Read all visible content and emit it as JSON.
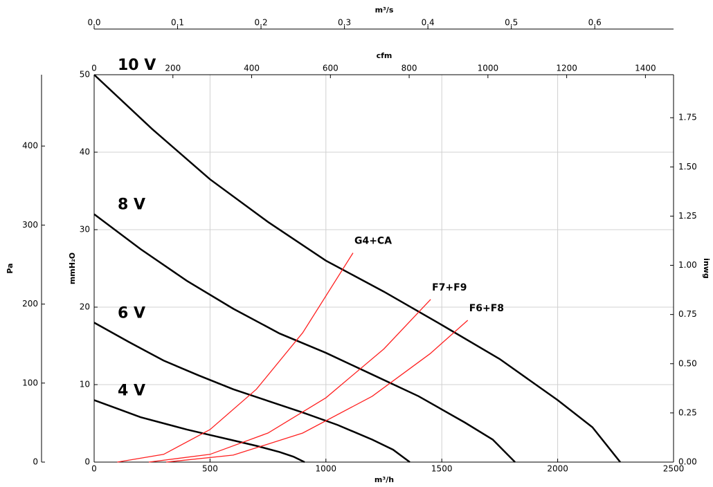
{
  "chart_data": {
    "type": "line",
    "x_label": "m³/h",
    "xlim": [
      0,
      2500
    ],
    "xticks": [
      0,
      500,
      1000,
      1500,
      2000,
      2500
    ],
    "x2_label": "cfm",
    "x2lim": [
      0,
      1471.4
    ],
    "x2ticks": [
      0,
      200,
      400,
      600,
      800,
      1000,
      1200,
      1400
    ],
    "x3_label": "m³/s",
    "x3lim": [
      0,
      0.6944
    ],
    "x3ticks": [
      {
        "value": 0,
        "label": "0.0"
      },
      0.1,
      0.2,
      0.3,
      0.4,
      0.5,
      0.6
    ],
    "y_label": "mmH₂O",
    "ylim": [
      0,
      50
    ],
    "yticks": [
      0,
      10,
      20,
      30,
      40,
      50
    ],
    "y2_label": "inwg",
    "y2lim": [
      0,
      1.9685
    ],
    "y2ticks": [
      {
        "value": 0,
        "label": "0.00"
      },
      0.25,
      {
        "value": 0.5,
        "label": "0.50"
      },
      0.75,
      {
        "value": 1,
        "label": "1.00"
      },
      1.25,
      {
        "value": 1.5,
        "label": "1.50"
      },
      1.75
    ],
    "y3_label": "Pa",
    "y3lim": [
      0,
      490.3
    ],
    "y3ticks": [
      0,
      100,
      200,
      300,
      400
    ],
    "grid": true,
    "series": [
      {
        "name": "10 V",
        "color": "#000000",
        "x": [
          0,
          250,
          500,
          750,
          1000,
          1250,
          1500,
          1750,
          2000,
          2150,
          2270
        ],
        "values": [
          50,
          43,
          36.5,
          31,
          26,
          22,
          17.7,
          13.3,
          8,
          4.5,
          0
        ]
      },
      {
        "name": "8 V",
        "color": "#000000",
        "x": [
          0,
          200,
          400,
          600,
          800,
          1000,
          1200,
          1400,
          1600,
          1720,
          1816
        ],
        "values": [
          32,
          27.5,
          23.4,
          19.8,
          16.6,
          14.1,
          11.3,
          8.5,
          5.1,
          2.9,
          0
        ]
      },
      {
        "name": "6 V",
        "color": "#000000",
        "x": [
          0,
          150,
          300,
          450,
          600,
          750,
          900,
          1050,
          1200,
          1290,
          1362
        ],
        "values": [
          18,
          15.5,
          13.1,
          11.2,
          9.4,
          7.9,
          6.4,
          4.8,
          2.9,
          1.6,
          0
        ]
      },
      {
        "name": "4 V",
        "color": "#000000",
        "x": [
          0,
          100,
          200,
          300,
          400,
          500,
          600,
          700,
          800,
          860,
          908
        ],
        "values": [
          8,
          6.9,
          5.8,
          5.0,
          4.2,
          3.5,
          2.8,
          2.1,
          1.3,
          0.7,
          0
        ]
      },
      {
        "name": "G4+CA",
        "color": "#ff2020",
        "x": [
          100,
          300,
          500,
          700,
          900,
          1117
        ],
        "values": [
          0,
          1.0,
          4.2,
          9.4,
          16.7,
          27
        ]
      },
      {
        "name": "F7+F9",
        "color": "#ff2020",
        "x": [
          236,
          500,
          750,
          1000,
          1250,
          1452
        ],
        "values": [
          0,
          1.0,
          3.75,
          8.3,
          14.6,
          21
        ]
      },
      {
        "name": "F6+F8",
        "color": "#ff2020",
        "x": [
          311,
          600,
          900,
          1200,
          1450,
          1612
        ],
        "values": [
          0,
          0.9,
          3.75,
          8.5,
          14.0,
          18.3
        ]
      }
    ]
  }
}
